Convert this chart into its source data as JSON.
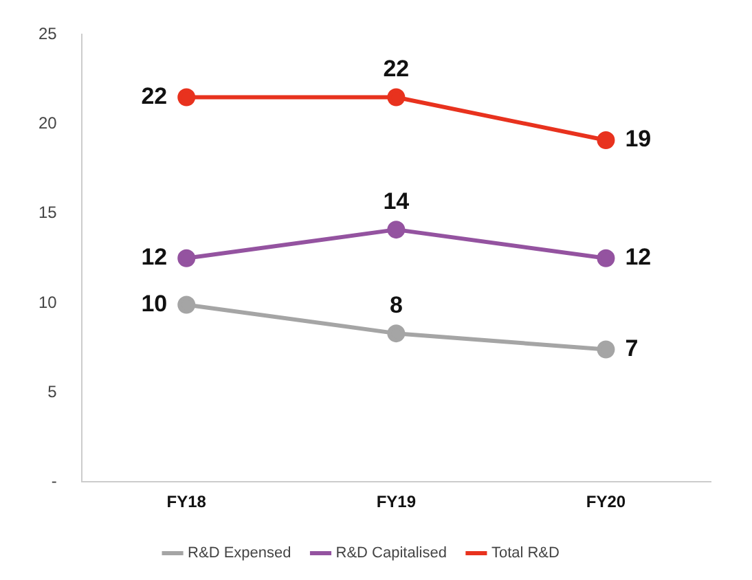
{
  "chart_data": {
    "type": "line",
    "categories": [
      "FY18",
      "FY19",
      "FY20"
    ],
    "series": [
      {
        "name": "R&D Expensed",
        "color": "#a5a5a5",
        "values": [
          9.9,
          8.3,
          7.4
        ],
        "value_labels": [
          "10",
          "8",
          "7"
        ]
      },
      {
        "name": "R&D Capitalised",
        "color": "#9453a0",
        "values": [
          12.5,
          14.1,
          12.5
        ],
        "value_labels": [
          "12",
          "14",
          "12"
        ]
      },
      {
        "name": "Total R&D",
        "color": "#e8321e",
        "values": [
          21.5,
          21.5,
          19.1
        ],
        "value_labels": [
          "22",
          "22",
          "19"
        ]
      }
    ],
    "ylim": [
      0,
      25
    ],
    "yticks": [
      {
        "value": 0,
        "label": "-"
      },
      5,
      10,
      15,
      20,
      25
    ],
    "grid": false,
    "legend": "bottom",
    "marker": "circle",
    "line_style": "solid"
  }
}
